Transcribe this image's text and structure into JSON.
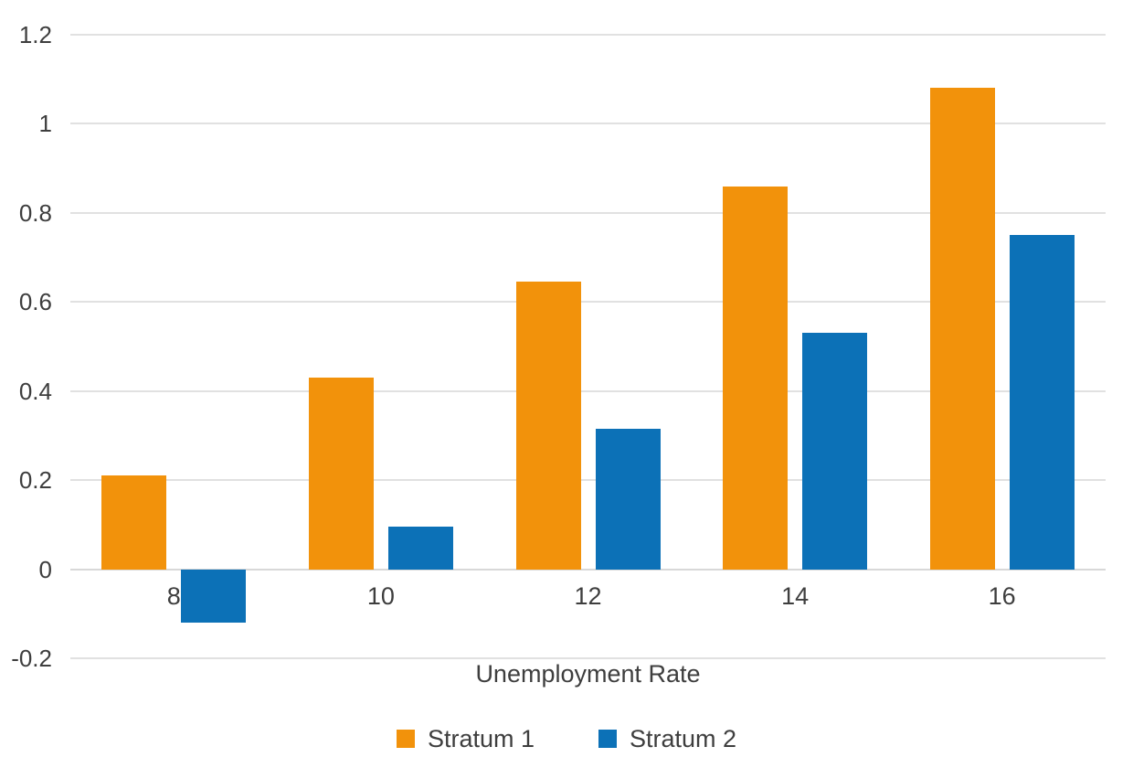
{
  "chart_data": {
    "type": "bar",
    "title": "",
    "xlabel": "Unemployment Rate",
    "ylabel": "",
    "categories": [
      "8",
      "10",
      "12",
      "14",
      "16"
    ],
    "series": [
      {
        "name": "Stratum 1",
        "color": "#F2920B",
        "values": [
          0.21,
          0.43,
          0.645,
          0.86,
          1.08
        ]
      },
      {
        "name": "Stratum 2",
        "color": "#0C71B7",
        "values": [
          -0.12,
          0.095,
          0.315,
          0.53,
          0.75
        ]
      }
    ],
    "y_tick_labels": [
      "1.2",
      "1",
      "0.8",
      "0.6",
      "0.4",
      "0.2",
      "0",
      "-0.2"
    ],
    "ylim": [
      -0.2,
      1.2
    ],
    "grid": true,
    "legend_position": "bottom",
    "colors": {
      "gridline": "#E1E1E1",
      "zero_baseline": "#D8D8D8",
      "text": "#3E3E3E",
      "background": "#FFFFFF"
    }
  }
}
